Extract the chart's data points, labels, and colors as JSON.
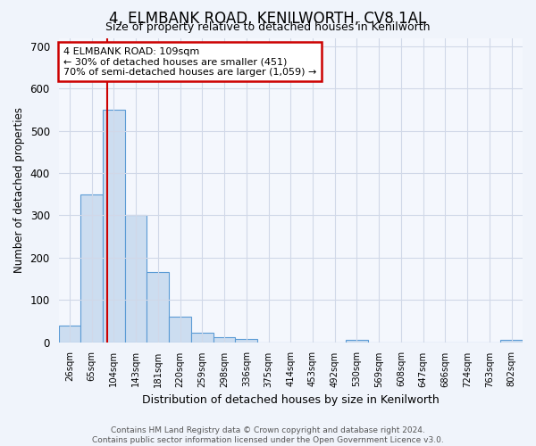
{
  "title": "4, ELMBANK ROAD, KENILWORTH, CV8 1AL",
  "subtitle": "Size of property relative to detached houses in Kenilworth",
  "xlabel": "Distribution of detached houses by size in Kenilworth",
  "ylabel": "Number of detached properties",
  "bar_labels": [
    "26sqm",
    "65sqm",
    "104sqm",
    "143sqm",
    "181sqm",
    "220sqm",
    "259sqm",
    "298sqm",
    "336sqm",
    "375sqm",
    "414sqm",
    "453sqm",
    "492sqm",
    "530sqm",
    "569sqm",
    "608sqm",
    "647sqm",
    "686sqm",
    "724sqm",
    "763sqm",
    "802sqm"
  ],
  "bar_values": [
    40,
    350,
    550,
    300,
    165,
    60,
    22,
    12,
    8,
    0,
    0,
    0,
    0,
    5,
    0,
    0,
    0,
    0,
    0,
    0,
    5
  ],
  "bar_color": "#ccddf0",
  "bar_edge_color": "#5b9bd5",
  "vline_x": 1.72,
  "vline_color": "#cc0000",
  "annotation_text": "4 ELMBANK ROAD: 109sqm\n← 30% of detached houses are smaller (451)\n70% of semi-detached houses are larger (1,059) →",
  "annotation_box_color": "#ffffff",
  "annotation_box_edge_color": "#cc0000",
  "ylim": [
    0,
    720
  ],
  "yticks": [
    0,
    100,
    200,
    300,
    400,
    500,
    600,
    700
  ],
  "footer_line1": "Contains HM Land Registry data © Crown copyright and database right 2024.",
  "footer_line2": "Contains public sector information licensed under the Open Government Licence v3.0.",
  "bg_color": "#f0f4fb",
  "plot_bg_color": "#f4f7fd",
  "grid_color": "#d0d8e8"
}
